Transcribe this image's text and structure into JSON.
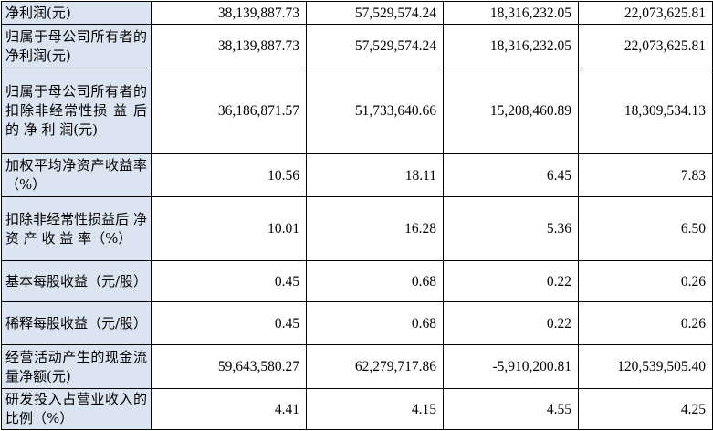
{
  "rows": [
    {
      "label": "净利润(元)",
      "values": [
        "38,139,887.73",
        "57,529,574.24",
        "18,316,232.05",
        "22,073,625.81"
      ]
    },
    {
      "label": "归属于母公司所有者的净利润(元)",
      "values": [
        "38,139,887.73",
        "57,529,574.24",
        "18,316,232.05",
        "22,073,625.81"
      ]
    },
    {
      "label": "归属于母公司所有者的扣除非经常性损 益 后 的 净 利 润(元)",
      "values": [
        "36,186,871.57",
        "51,733,640.66",
        "15,208,460.89",
        "18,309,534.13"
      ]
    },
    {
      "label": "加权平均净资产收益率（%）",
      "values": [
        "10.56",
        "18.11",
        "6.45",
        "7.83"
      ]
    },
    {
      "label": "扣除非经常性损益后 净 资 产 收 益 率（%）",
      "values": [
        "10.01",
        "16.28",
        "5.36",
        "6.50"
      ]
    },
    {
      "label": "基本每股收益（元/股）",
      "values": [
        "0.45",
        "0.68",
        "0.22",
        "0.26"
      ]
    },
    {
      "label": "稀释每股收益（元/股）",
      "values": [
        "0.45",
        "0.68",
        "0.22",
        "0.26"
      ]
    },
    {
      "label": "经营活动产生的现金流量净额(元)",
      "values": [
        "59,643,580.27",
        "62,279,717.86",
        "-5,910,200.81",
        "120,539,505.40"
      ]
    },
    {
      "label": "研发投入占营业收入的比例（%）",
      "values": [
        "4.41",
        "4.15",
        "4.55",
        "4.25"
      ]
    }
  ]
}
